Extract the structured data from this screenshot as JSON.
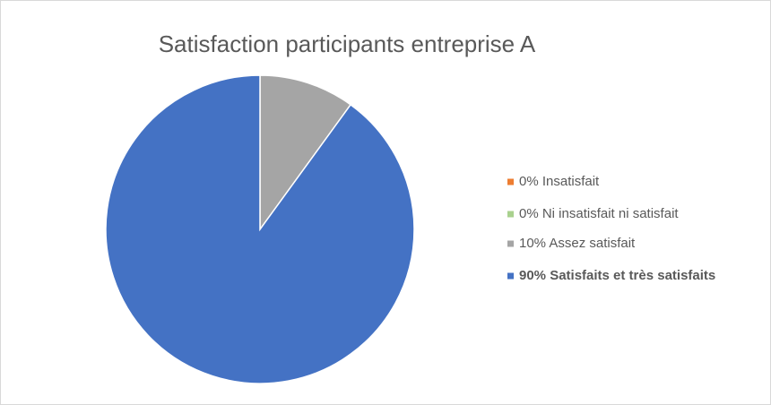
{
  "chart_data": {
    "type": "pie",
    "title": "Satisfaction participants entreprise A",
    "categories": [
      "0% Insatisfait",
      "0% Ni insatisfait ni satisfait",
      "10% Assez satisfait",
      "90% Satisfaits et très satisfaits"
    ],
    "values": [
      0,
      0,
      10,
      90
    ],
    "colors": [
      "#ed7d31",
      "#a9d18e",
      "#a5a5a5",
      "#4472c4"
    ]
  }
}
